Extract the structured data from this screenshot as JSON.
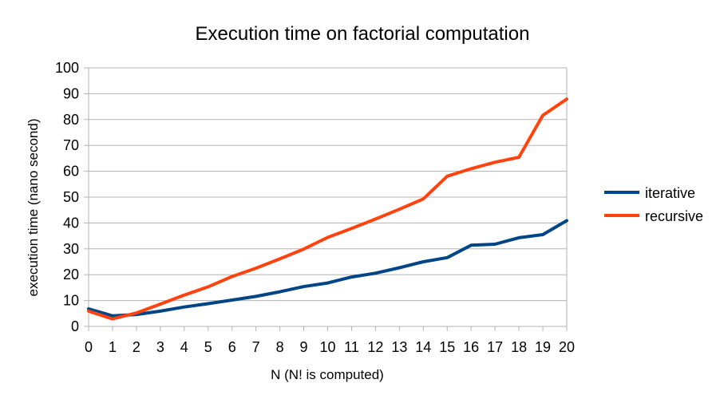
{
  "chart_data": {
    "type": "line",
    "title": "Execution time on factorial computation",
    "xlabel": "N (N! is computed)",
    "ylabel": "execution time (nano second)",
    "x": [
      0,
      1,
      2,
      3,
      4,
      5,
      6,
      7,
      8,
      9,
      10,
      11,
      12,
      13,
      14,
      15,
      16,
      17,
      18,
      19,
      20
    ],
    "ylim": [
      0,
      100
    ],
    "yticks": [
      0,
      10,
      20,
      30,
      40,
      50,
      60,
      70,
      80,
      90,
      100
    ],
    "grid": "horizontal",
    "legend_position": "right",
    "series": [
      {
        "name": "iterative",
        "color": "#004586",
        "values": [
          6.8,
          4.1,
          4.6,
          5.9,
          7.5,
          8.8,
          10.2,
          11.6,
          13.4,
          15.4,
          16.8,
          19.1,
          20.6,
          22.7,
          25.0,
          26.6,
          31.4,
          31.8,
          34.3,
          35.5,
          40.9
        ]
      },
      {
        "name": "recursive",
        "color": "#ff420e",
        "values": [
          5.9,
          2.9,
          5.2,
          8.6,
          12.1,
          15.3,
          19.3,
          22.5,
          26.1,
          29.9,
          34.4,
          37.9,
          41.5,
          45.3,
          49.3,
          58.1,
          61.0,
          63.5,
          65.4,
          81.6,
          87.9
        ]
      }
    ]
  }
}
